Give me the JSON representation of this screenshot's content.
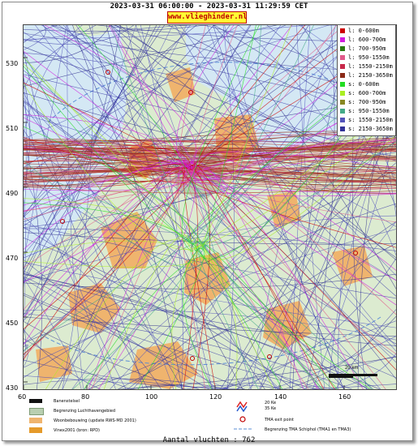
{
  "header": {
    "title": "2023-03-31 06:00:00 - 2023-03-31 11:29:59 CET",
    "brand": "www.vlieghinder.nl"
  },
  "map": {
    "y_ticks": [
      "530",
      "510",
      "490",
      "470",
      "450",
      "430"
    ],
    "x_ticks": [
      "60",
      "80",
      "100",
      "120",
      "140",
      "160"
    ],
    "scale_label": "20 km",
    "colors": {
      "sea": "#d4e8f4",
      "land": "#dcebd0",
      "urban": "#efb46e",
      "airport": "#b9cfb1"
    }
  },
  "legend": {
    "items": [
      {
        "label": "l: 0-600m",
        "color": "#cc0000"
      },
      {
        "label": "l: 600-700m",
        "color": "#d11ee0"
      },
      {
        "label": "l: 700-950m",
        "color": "#2a7a12"
      },
      {
        "label": "l: 950-1550m",
        "color": "#e05a8a"
      },
      {
        "label": "l: 1550-2150m",
        "color": "#c8284a"
      },
      {
        "label": "l: 2150-3650m",
        "color": "#8a2a18"
      },
      {
        "label": "s: 0-600m",
        "color": "#22dd22"
      },
      {
        "label": "s: 600-700m",
        "color": "#aaee22"
      },
      {
        "label": "s: 700-950m",
        "color": "#888822"
      },
      {
        "label": "s: 950-1550m",
        "color": "#44aa88"
      },
      {
        "label": "s: 1550-2150m",
        "color": "#5555bb"
      },
      {
        "label": "s: 2150-3650m",
        "color": "#333399"
      }
    ]
  },
  "footer": {
    "items": [
      {
        "label": "Banenstelsel",
        "color": "#111111"
      },
      {
        "label": "Begrenzing Luchthavengebied",
        "color": "#b9cfb1"
      },
      {
        "label": "Woonbebouwing (update RWS-MD 2001)",
        "color": "#efb46e"
      },
      {
        "label": "Vinex2001 (bron: RPD)",
        "color": "#e59a2a"
      }
    ],
    "noise_label_1": "20 Ke",
    "noise_label_2": "35 Ke",
    "tma_exit_label": "TMA exit point",
    "tma_border_label": "Begrenzing TMA Schiphol  (TMA1 en TMA3)",
    "flight_count": "Aantal vluchten : 762"
  }
}
